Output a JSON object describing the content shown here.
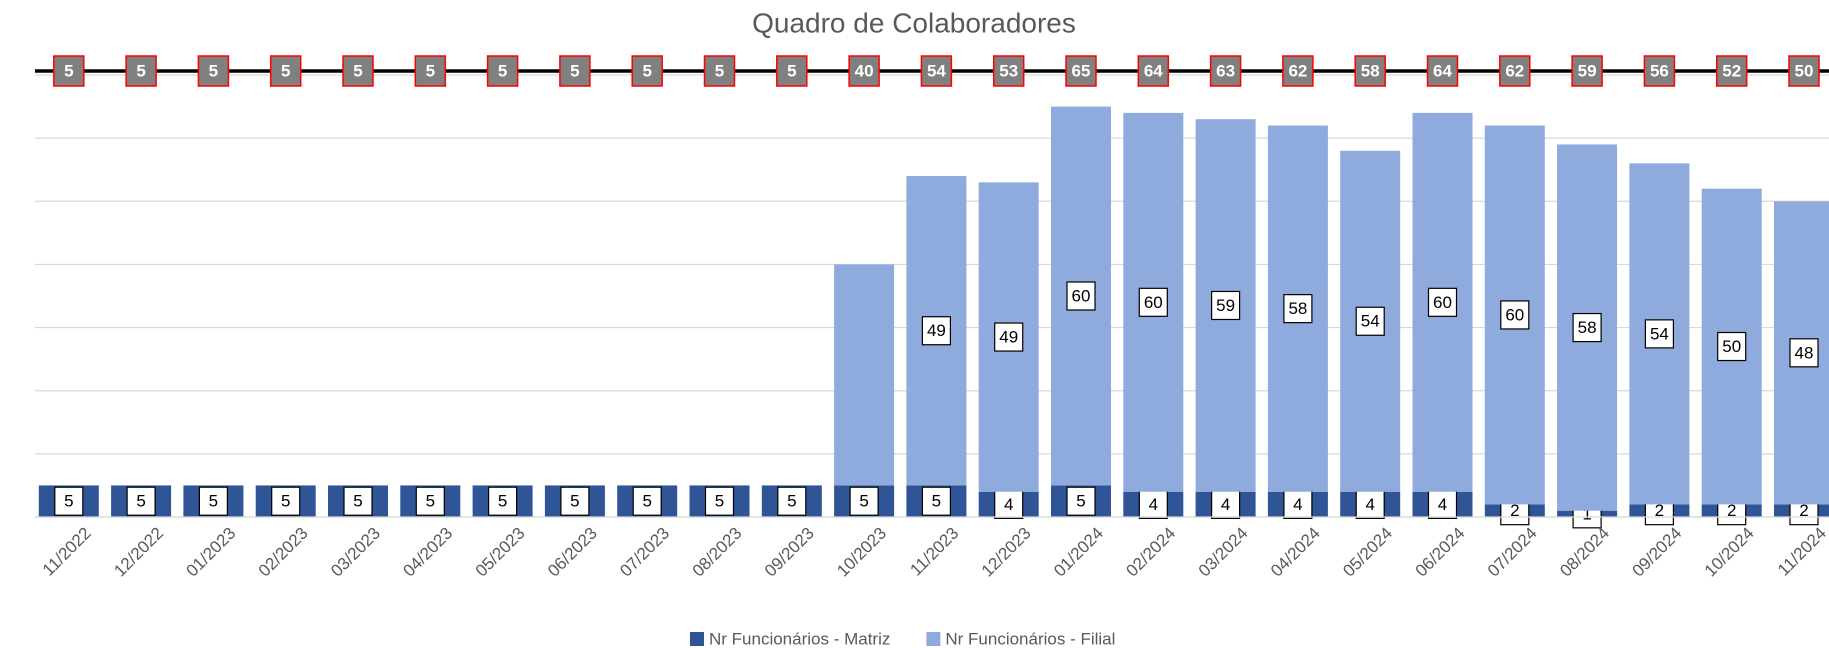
{
  "chart_data": {
    "type": "stacked-bar",
    "title": "Quadro de Colaboradores",
    "categories": [
      "11/2022",
      "12/2022",
      "01/2023",
      "02/2023",
      "03/2023",
      "04/2023",
      "05/2023",
      "06/2023",
      "07/2023",
      "08/2023",
      "09/2023",
      "10/2023",
      "11/2023",
      "12/2023",
      "01/2024",
      "02/2024",
      "03/2024",
      "04/2024",
      "05/2024",
      "06/2024",
      "07/2024",
      "08/2024",
      "09/2024",
      "10/2024",
      "11/2024"
    ],
    "series": [
      {
        "name": "Nr Funcionários - Matriz",
        "color": "#2f5597",
        "values": [
          5,
          5,
          5,
          5,
          5,
          5,
          5,
          5,
          5,
          5,
          5,
          5,
          5,
          4,
          5,
          4,
          4,
          4,
          4,
          4,
          2,
          1,
          2,
          2,
          2
        ]
      },
      {
        "name": "Nr Funcionários - Filial",
        "color": "#8faadc",
        "values": [
          0,
          0,
          0,
          0,
          0,
          0,
          0,
          0,
          0,
          0,
          0,
          35,
          49,
          49,
          60,
          60,
          59,
          58,
          54,
          60,
          60,
          58,
          54,
          50,
          48
        ],
        "value_labels": [
          null,
          null,
          null,
          null,
          null,
          null,
          null,
          null,
          null,
          null,
          null,
          null,
          "49",
          "49",
          "60",
          "60",
          "59",
          "58",
          "54",
          "60",
          "60",
          "58",
          "54",
          "50",
          "48"
        ]
      }
    ],
    "totals": {
      "color": "#000000",
      "label_color": "#808080",
      "label_border": "#ff0000",
      "values": [
        5,
        5,
        5,
        5,
        5,
        5,
        5,
        5,
        5,
        5,
        5,
        40,
        54,
        53,
        65,
        64,
        63,
        62,
        58,
        64,
        62,
        59,
        56,
        52,
        50
      ]
    },
    "ylim": [
      0,
      70
    ],
    "yticks": [
      0,
      10,
      20,
      30,
      40,
      50,
      60,
      70
    ],
    "grid": true,
    "legend": "bottom"
  }
}
